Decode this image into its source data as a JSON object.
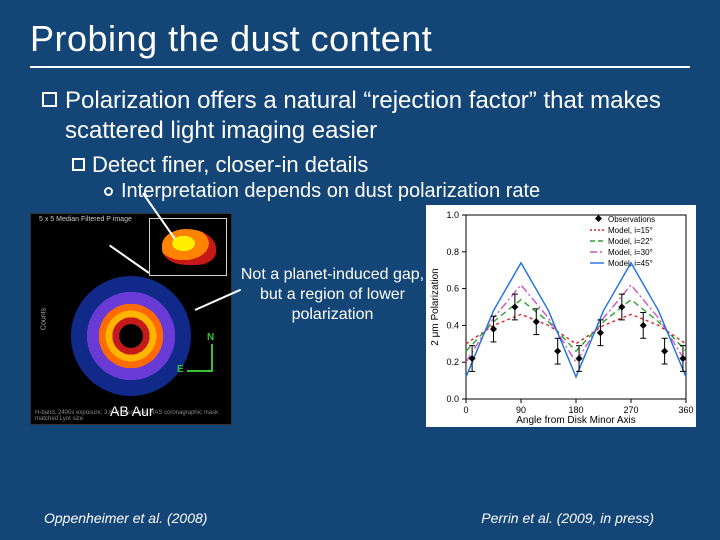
{
  "slide": {
    "background": "#134577",
    "title": "Probing the dust content",
    "bullet1": "Polarization offers a natural “rejection factor” that makes scattered light imaging easier",
    "bullet2": "Detect finer, closer-in details",
    "bullet3": "Interpretation depends on dust polarization rate",
    "callout": "Not a planet-induced gap, but a region of lower polarization",
    "ab_aur_label": "AB Aur",
    "cite_left": "Oppenheimer et al. (2008)",
    "cite_right": "Perrin et al. (2009, in press)"
  },
  "left_figure": {
    "small_title": "5 x 5 Median Filtered P image",
    "y_axis_label": "Counts",
    "bottom_caption": "H-band, 2400s exposure; 3.6-m telescope; RAS coronagraphic mask matched Lyot size",
    "compass_n": "N",
    "compass_e": "E",
    "disk_colors": [
      "#000000",
      "#c51a1a",
      "#ffb400",
      "#ff6b00",
      "#6a3ad6",
      "#112a8a",
      "#000014"
    ]
  },
  "right_chart": {
    "type": "line",
    "background_color": "#ffffff",
    "xlabel": "Angle from Disk Minor Axis",
    "ylabel": "2 μm Polarization",
    "label_fontsize": 9,
    "xlim": [
      0,
      360
    ],
    "ylim": [
      0.0,
      1.0
    ],
    "yticks": [
      0.0,
      0.2,
      0.4,
      0.6,
      0.8,
      1.0
    ],
    "xticks": [
      0,
      90,
      180,
      270,
      360
    ],
    "legend": {
      "position": "top-right",
      "items": [
        {
          "label": "Observations",
          "color": "#000000",
          "style": "errorbar"
        },
        {
          "label": "Model, i=15°",
          "color": "#d62728",
          "style": "dotted"
        },
        {
          "label": "Model, i=22°",
          "color": "#2ca02c",
          "style": "dashed"
        },
        {
          "label": "Model, i=30°",
          "color": "#c956c9",
          "style": "dashdot"
        },
        {
          "label": "Model, i=45°",
          "color": "#1f6fe4",
          "style": "solid"
        }
      ]
    },
    "observations": {
      "x": [
        10,
        45,
        80,
        115,
        150,
        185,
        220,
        255,
        290,
        325,
        355
      ],
      "y": [
        0.22,
        0.38,
        0.5,
        0.42,
        0.26,
        0.22,
        0.36,
        0.5,
        0.4,
        0.26,
        0.22
      ],
      "yerr": 0.07,
      "color": "#000000"
    },
    "models": [
      {
        "name": "i=15",
        "color": "#d62728",
        "dash": "3,3",
        "x": [
          0,
          45,
          90,
          135,
          180,
          225,
          270,
          315,
          360
        ],
        "y": [
          0.3,
          0.4,
          0.46,
          0.4,
          0.3,
          0.4,
          0.46,
          0.4,
          0.3
        ]
      },
      {
        "name": "i=22",
        "color": "#2ca02c",
        "dash": "6,4",
        "x": [
          0,
          45,
          90,
          135,
          180,
          225,
          270,
          315,
          360
        ],
        "y": [
          0.26,
          0.42,
          0.54,
          0.42,
          0.26,
          0.42,
          0.54,
          0.42,
          0.26
        ]
      },
      {
        "name": "i=30",
        "color": "#c956c9",
        "dash": "8,3,2,3",
        "x": [
          0,
          45,
          90,
          135,
          180,
          225,
          270,
          315,
          360
        ],
        "y": [
          0.2,
          0.44,
          0.62,
          0.44,
          0.2,
          0.44,
          0.62,
          0.44,
          0.2
        ]
      },
      {
        "name": "i=45",
        "color": "#1f6fe4",
        "dash": "",
        "x": [
          0,
          45,
          90,
          135,
          180,
          225,
          270,
          315,
          360
        ],
        "y": [
          0.12,
          0.48,
          0.74,
          0.48,
          0.12,
          0.48,
          0.74,
          0.48,
          0.12
        ]
      }
    ]
  }
}
